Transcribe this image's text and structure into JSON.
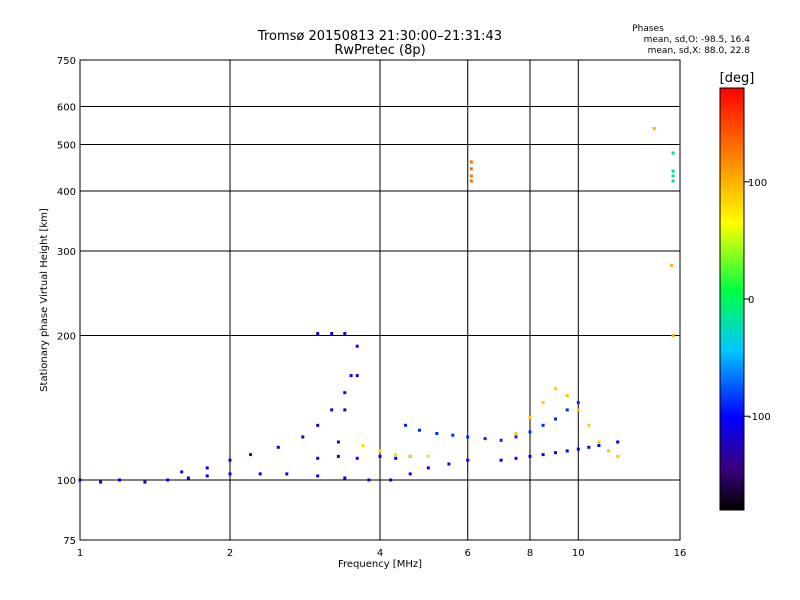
{
  "chart_data": {
    "type": "scatter",
    "title": "Tromsø 20150813 21:30:00–21:31:43",
    "subtitle": "RwPretec (8p)",
    "xlabel": "Frequency [MHz]",
    "ylabel": "Stationary phase Virtual Height [km]",
    "x_scale": "log",
    "y_scale": "log",
    "xlim": [
      1,
      16
    ],
    "ylim": [
      75,
      750
    ],
    "grid": true,
    "x_ticks": [
      1,
      2,
      4,
      6,
      8,
      10,
      16
    ],
    "x_tick_labels": [
      "1",
      "2",
      "4",
      "6",
      "8",
      "10",
      "16"
    ],
    "y_ticks": [
      75,
      100,
      200,
      300,
      400,
      500,
      600,
      750
    ],
    "y_tick_labels": [
      "75",
      "100",
      "200",
      "300",
      "400",
      "500",
      "600",
      "750"
    ],
    "stats": {
      "title": "Phases",
      "line_o": "mean, sd,O:  -98.5, 16.4",
      "line_x": "mean, sd,X:  88.0, 22.8"
    },
    "colorbar": {
      "label": "[deg]",
      "range": [
        -180,
        180
      ],
      "ticks": [
        100,
        0,
        -100
      ],
      "tick_labels": [
        "100",
        "0",
        "-100"
      ]
    },
    "traces": [
      {
        "x": [
          1.0,
          1.1,
          1.2,
          1.35,
          1.5,
          1.65,
          1.8,
          2.0,
          2.3,
          2.6,
          3.0,
          3.4,
          3.8,
          4.2,
          4.6,
          5.0,
          5.5,
          6.0
        ],
        "y": [
          100,
          99,
          100,
          99,
          100,
          101,
          102,
          103,
          103,
          103,
          102,
          101,
          100,
          100,
          103,
          106,
          108,
          110
        ],
        "phase": -110
      },
      {
        "x": [
          1.6,
          1.8,
          2.0,
          2.2,
          2.5,
          2.8,
          3.0,
          3.2,
          3.4,
          3.6
        ],
        "y": [
          104,
          106,
          110,
          113,
          117,
          123,
          130,
          140,
          152,
          165
        ],
        "phase": -115
      },
      {
        "x": [
          3.3,
          3.4,
          3.5,
          3.6
        ],
        "y": [
          120,
          140,
          165,
          190
        ],
        "phase": -112
      },
      {
        "x": [
          3.0,
          3.3,
          3.6,
          4.0,
          4.3,
          4.6
        ],
        "y": [
          111,
          112,
          111,
          112,
          111,
          112
        ],
        "phase": -108
      },
      {
        "x": [
          3.0,
          3.2,
          3.4
        ],
        "y": [
          202,
          202,
          202
        ],
        "phase": -118
      },
      {
        "x": [
          3.7,
          4.0,
          4.3,
          4.6,
          5.0
        ],
        "y": [
          118,
          115,
          113,
          112,
          112
        ],
        "phase": 80
      },
      {
        "x": [
          4.5,
          4.8,
          5.2,
          5.6,
          6.0,
          6.5,
          7.0,
          7.5,
          8.0,
          8.5,
          9.0,
          9.5,
          10.0
        ],
        "y": [
          130,
          127,
          125,
          124,
          123,
          122,
          121,
          123,
          126,
          130,
          134,
          140,
          145
        ],
        "phase": -90
      },
      {
        "x": [
          7.5,
          8.0,
          8.5,
          9.0,
          9.5,
          10.0,
          10.5,
          11.0,
          11.5,
          12.0
        ],
        "y": [
          125,
          135,
          145,
          155,
          150,
          140,
          130,
          120,
          115,
          112
        ],
        "phase": 90
      },
      {
        "x": [
          7.0,
          7.5,
          8.0,
          8.5,
          9.0,
          9.5,
          10.0,
          10.5,
          11.0,
          12.0
        ],
        "y": [
          110,
          111,
          112,
          113,
          114,
          115,
          116,
          117,
          118,
          120
        ],
        "phase": -100
      },
      {
        "x": [
          6.1,
          6.1,
          6.1,
          6.1
        ],
        "y": [
          420,
          430,
          445,
          460
        ],
        "phase": 130
      },
      {
        "x": [
          15.5,
          15.5,
          15.5,
          15.5
        ],
        "y": [
          420,
          430,
          440,
          480
        ],
        "phase": -20
      },
      {
        "x": [
          14.2,
          15.4,
          15.5
        ],
        "y": [
          540,
          280,
          200
        ],
        "phase": 100
      }
    ]
  }
}
